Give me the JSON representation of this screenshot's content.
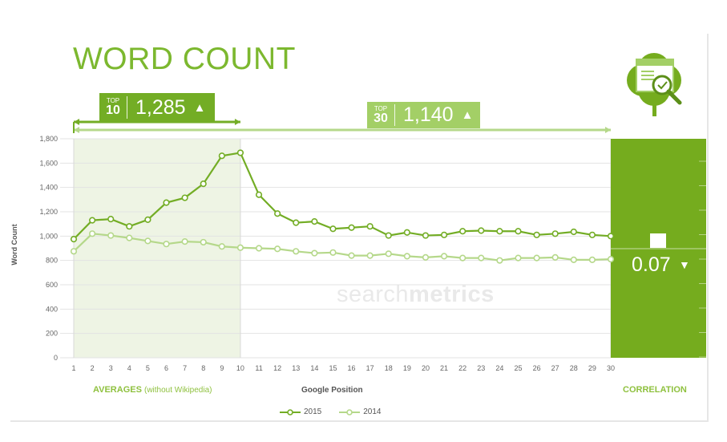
{
  "title": "WORD COUNT",
  "badges": {
    "top10": {
      "small": "TOP",
      "big": "10",
      "value": "1,285",
      "arrow": "▲"
    },
    "top30": {
      "small": "TOP",
      "big": "30",
      "value": "1,140",
      "arrow": "▲"
    }
  },
  "correlation": {
    "value": "0.07",
    "arrow": "▼"
  },
  "labels": {
    "averages": "AVERAGES",
    "averages_sub": "(without Wikipedia)",
    "xaxis": "Google Position",
    "correlation": "CORRELATION",
    "yaxis": "Word Count"
  },
  "watermark": {
    "light": "search",
    "bold": "metrics"
  },
  "colors": {
    "dark_green": "#73ad25",
    "light_green": "#b5d88a",
    "panel": "#75ac1e"
  },
  "icons": [
    "clover-report-magnifier-icon"
  ],
  "chart_data": {
    "type": "line",
    "x": [
      1,
      2,
      3,
      4,
      5,
      6,
      7,
      8,
      9,
      10,
      11,
      12,
      13,
      14,
      15,
      16,
      17,
      18,
      19,
      20,
      21,
      22,
      23,
      24,
      25,
      26,
      27,
      28,
      29,
      30
    ],
    "xlabel": "Google Position",
    "ylabel": "Word Count",
    "ylim": [
      0,
      1800
    ],
    "yticks": [
      0,
      200,
      400,
      600,
      800,
      1000,
      1200,
      1400,
      1600,
      1800
    ],
    "ytick_labels": [
      "0",
      "200",
      "400",
      "600",
      "800",
      "1,000",
      "1,200",
      "1,400",
      "1,600",
      "1,800"
    ],
    "grid": true,
    "legend": "bottom",
    "series": [
      {
        "name": "2015",
        "color": "#73ad25",
        "values": [
          975,
          1130,
          1140,
          1080,
          1135,
          1275,
          1315,
          1430,
          1660,
          1685,
          1340,
          1185,
          1110,
          1120,
          1060,
          1070,
          1080,
          1005,
          1030,
          1005,
          1010,
          1040,
          1045,
          1040,
          1040,
          1010,
          1020,
          1035,
          1010,
          1000
        ]
      },
      {
        "name": "2014",
        "color": "#b5d88a",
        "values": [
          875,
          1020,
          1005,
          985,
          960,
          935,
          955,
          950,
          915,
          905,
          900,
          895,
          875,
          860,
          865,
          840,
          840,
          855,
          835,
          825,
          835,
          820,
          820,
          800,
          820,
          820,
          825,
          805,
          805,
          810
        ]
      }
    ]
  }
}
